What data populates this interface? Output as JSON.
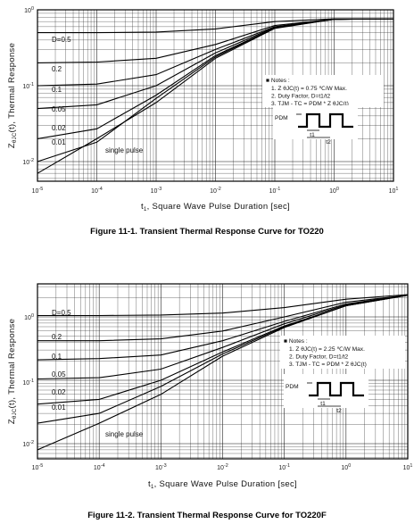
{
  "chart_data": [
    {
      "type": "line",
      "title": "Figure 11-1. Transient Thermal Response Curve  for TO220",
      "xlabel": "t , Square Wave Pulse Duration [sec]",
      "x_sub": "1",
      "ylabel": "Z (t), Thermal Response",
      "y_sub": "θJC",
      "x_scale": "log",
      "y_scale": "log",
      "xlim": [
        1e-05,
        10
      ],
      "ylim": [
        0.005,
        1
      ],
      "grid": true,
      "x_tick_labels": [
        "10-5",
        "10-4",
        "10-3",
        "10-2",
        "10-1",
        "100",
        "101"
      ],
      "y_tick_labels": [
        "10-2",
        "10-1",
        "100"
      ],
      "series": [
        {
          "name": "D=0.5",
          "x": [
            1e-05,
            0.0001,
            0.001,
            0.01,
            0.1,
            1,
            10
          ],
          "y": [
            0.5,
            0.5,
            0.51,
            0.56,
            0.7,
            0.76,
            0.76
          ]
        },
        {
          "name": "0.2",
          "x": [
            1e-05,
            0.0001,
            0.001,
            0.01,
            0.1,
            1,
            10
          ],
          "y": [
            0.2,
            0.205,
            0.23,
            0.35,
            0.62,
            0.75,
            0.76
          ]
        },
        {
          "name": "0.1",
          "x": [
            1e-05,
            0.0001,
            0.001,
            0.01,
            0.1,
            1,
            10
          ],
          "y": [
            0.1,
            0.105,
            0.14,
            0.3,
            0.6,
            0.75,
            0.76
          ]
        },
        {
          "name": "0.05",
          "x": [
            1e-05,
            0.0001,
            0.001,
            0.01,
            0.1,
            1,
            10
          ],
          "y": [
            0.05,
            0.056,
            0.1,
            0.27,
            0.59,
            0.75,
            0.76
          ]
        },
        {
          "name": "0.02",
          "x": [
            1e-05,
            0.0001,
            0.001,
            0.01,
            0.1,
            1,
            10
          ],
          "y": [
            0.02,
            0.027,
            0.075,
            0.25,
            0.58,
            0.75,
            0.76
          ]
        },
        {
          "name": "0.01",
          "x": [
            1e-05,
            0.0001,
            0.001,
            0.01,
            0.1,
            1,
            10
          ],
          "y": [
            0.01,
            0.018,
            0.068,
            0.24,
            0.58,
            0.75,
            0.76
          ]
        },
        {
          "name": "single pulse",
          "x": [
            1e-05,
            0.0001,
            0.001,
            0.01,
            0.1,
            1,
            10
          ],
          "y": [
            0.007,
            0.02,
            0.06,
            0.23,
            0.57,
            0.75,
            0.76
          ]
        }
      ],
      "notes": {
        "heading": "Notes :",
        "lines": [
          "1. Z θJC(t) = 0.75 ℃/W Max.",
          "2. Duty Factor, D=t1/t2",
          "3. TJM - TC = PDM * Z θJC(t)"
        ],
        "pdm": "PDM",
        "t1": "t1",
        "t2": "t2"
      }
    },
    {
      "type": "line",
      "title": "Figure 11-2. Transient Thermal Response Curve for TO220F",
      "xlabel": "t , Square Wave Pulse Duration [sec]",
      "x_sub": "1",
      "ylabel": "Z (t), Thermal Response",
      "y_sub": "θJC",
      "x_scale": "log",
      "y_scale": "log",
      "xlim": [
        1e-05,
        10
      ],
      "ylim": [
        0.005,
        3
      ],
      "grid": true,
      "x_tick_labels": [
        "10-5",
        "10-4",
        "10-3",
        "10-2",
        "10-1",
        "100",
        "101"
      ],
      "y_tick_labels": [
        "10-2",
        "10-1",
        "100"
      ],
      "series": [
        {
          "name": "D=0.5",
          "x": [
            1e-05,
            0.0001,
            0.001,
            0.01,
            0.1,
            1,
            10
          ],
          "y": [
            1.05,
            1.05,
            1.07,
            1.15,
            1.4,
            1.9,
            2.25
          ]
        },
        {
          "name": "0.2",
          "x": [
            1e-05,
            0.0001,
            0.001,
            0.01,
            0.1,
            1,
            10
          ],
          "y": [
            0.42,
            0.42,
            0.45,
            0.6,
            1.0,
            1.7,
            2.2
          ]
        },
        {
          "name": "0.1",
          "x": [
            1e-05,
            0.0001,
            0.001,
            0.01,
            0.1,
            1,
            10
          ],
          "y": [
            0.21,
            0.22,
            0.25,
            0.42,
            0.85,
            1.6,
            2.2
          ]
        },
        {
          "name": "0.05",
          "x": [
            1e-05,
            0.0001,
            0.001,
            0.01,
            0.1,
            1,
            10
          ],
          "y": [
            0.105,
            0.11,
            0.15,
            0.33,
            0.78,
            1.55,
            2.2
          ]
        },
        {
          "name": "0.02",
          "x": [
            1e-05,
            0.0001,
            0.001,
            0.01,
            0.1,
            1,
            10
          ],
          "y": [
            0.042,
            0.05,
            0.1,
            0.28,
            0.72,
            1.5,
            2.2
          ]
        },
        {
          "name": "0.01",
          "x": [
            1e-05,
            0.0001,
            0.001,
            0.01,
            0.1,
            1,
            10
          ],
          "y": [
            0.021,
            0.03,
            0.08,
            0.26,
            0.7,
            1.5,
            2.2
          ]
        },
        {
          "name": "single pulse",
          "x": [
            1e-05,
            0.0001,
            0.001,
            0.01,
            0.1,
            1,
            10
          ],
          "y": [
            0.008,
            0.021,
            0.06,
            0.24,
            0.68,
            1.5,
            2.2
          ]
        }
      ],
      "notes": {
        "heading": "Notes :",
        "lines": [
          "1. Z θJC(t) = 2.25 ℃/W Max.",
          "2. Duty Factor, D=t1/t2",
          "3. TJM - TC = PDM * Z θJC(t)"
        ],
        "pdm": "PDM",
        "t1": "t1",
        "t2": "t2"
      }
    }
  ]
}
